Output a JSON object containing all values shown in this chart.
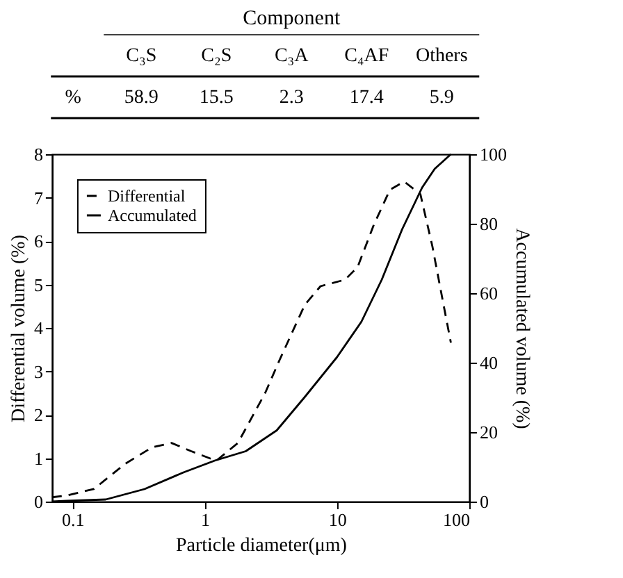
{
  "chart_data": [
    {
      "type": "other",
      "title": "Component",
      "ylabel": "%",
      "categories": [
        "C₃S",
        "C₂S",
        "C₃A",
        "C₄AF",
        "Others"
      ],
      "values": [
        58.9,
        15.5,
        2.3,
        17.4,
        5.9
      ],
      "data_labels": true
    },
    {
      "type": "line",
      "xlabel": "Particle diameter(μm)",
      "ylabel": "Differential volume (%)",
      "y2label": "Accumulated volume (%)",
      "log": "x",
      "xlim": [
        0.07,
        100
      ],
      "xticks": [
        0.1,
        1,
        10,
        100
      ],
      "ylim": [
        0,
        8
      ],
      "yticks": [
        0,
        1,
        2,
        3,
        4,
        5,
        6,
        7,
        8
      ],
      "y2lim": [
        0,
        100
      ],
      "y2ticks": [
        0,
        20,
        40,
        60,
        80,
        100
      ],
      "grid": false,
      "legend": "top left",
      "series": [
        {
          "name": "Differential",
          "color": "#000000",
          "line_style": "dashed",
          "x": [
            0.07,
            0.09,
            0.145,
            0.25,
            0.4,
            0.56,
            0.79,
            1.22,
            1.78,
            2.86,
            3.7,
            5.7,
            7.5,
            11.5,
            14.3,
            18.9,
            25.1,
            32.2,
            42.7,
            52.6,
            63,
            72.6
          ],
          "values": [
            0.1,
            0.14,
            0.29,
            0.87,
            1.25,
            1.35,
            1.16,
            0.94,
            1.35,
            2.5,
            3.28,
            4.53,
            4.96,
            5.11,
            5.4,
            6.36,
            7.18,
            7.37,
            7.08,
            5.88,
            4.63,
            3.66
          ]
        },
        {
          "name": "Accumulated",
          "color": "#000000",
          "line_style": "solid",
          "axis": "y2",
          "x": [
            0.07,
            0.09,
            0.178,
            0.35,
            0.69,
            1.19,
            2.04,
            3.5,
            5.7,
            10,
            15.3,
            21.8,
            31,
            44,
            54.8,
            72.6
          ],
          "values": [
            0,
            0.2,
            0.6,
            3.6,
            8.4,
            11.8,
            14.5,
            20.5,
            30.1,
            41.6,
            51.8,
            63.9,
            78.3,
            90.4,
            95.8,
            100
          ]
        }
      ]
    }
  ]
}
